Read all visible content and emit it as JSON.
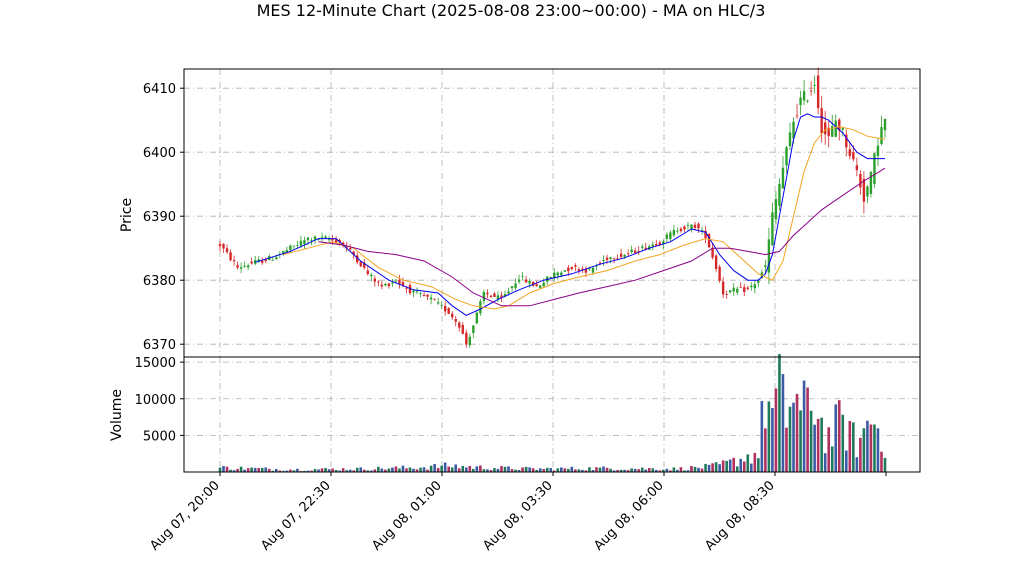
{
  "title": "MES 12-Minute Chart (2025-08-08 23:00~00:00) - MA on HLC/3",
  "colors": {
    "up": "#2ca02c",
    "down": "#d62728",
    "ma_short": "#0000ee",
    "ma_mid": "#f4a422",
    "ma_long": "#8b008b",
    "vol_a": "#1f7a5c",
    "vol_b": "#3b5ba5",
    "vol_c": "#b03060",
    "grid": "#b0b0b0"
  },
  "chart_data": [
    {
      "type": "candlestick",
      "ylabel": "Price",
      "ylim": [
        6368,
        6413
      ],
      "yticks": [
        6370,
        6380,
        6390,
        6400,
        6410
      ],
      "grid": true,
      "x_ticks": [
        "Aug 07, 20:00",
        "Aug 07, 22:30",
        "Aug 08, 01:00",
        "Aug 08, 03:30",
        "Aug 08, 06:00",
        "Aug 08, 08:30"
      ],
      "close_path": [
        [
          0,
          6385.5
        ],
        [
          5,
          6382.0
        ],
        [
          10,
          6382.8
        ],
        [
          15,
          6383.5
        ],
        [
          20,
          6385.0
        ],
        [
          25,
          6386.5
        ],
        [
          30,
          6386.5
        ],
        [
          34,
          6386.0
        ],
        [
          38,
          6384.0
        ],
        [
          42,
          6381.0
        ],
        [
          46,
          6379.0
        ],
        [
          50,
          6380.0
        ],
        [
          55,
          6378.0
        ],
        [
          60,
          6377.0
        ],
        [
          65,
          6375.0
        ],
        [
          68,
          6373.0
        ],
        [
          70,
          6370.0
        ],
        [
          72,
          6373.0
        ],
        [
          75,
          6378.0
        ],
        [
          80,
          6377.0
        ],
        [
          85,
          6380.5
        ],
        [
          90,
          6379.0
        ],
        [
          95,
          6381.0
        ],
        [
          100,
          6382.0
        ],
        [
          105,
          6381.5
        ],
        [
          110,
          6383.5
        ],
        [
          115,
          6384.0
        ],
        [
          120,
          6385.0
        ],
        [
          125,
          6386.0
        ],
        [
          130,
          6388.0
        ],
        [
          135,
          6388.5
        ],
        [
          138,
          6387.0
        ],
        [
          141,
          6382.0
        ],
        [
          143,
          6378.0
        ],
        [
          147,
          6378.5
        ],
        [
          150,
          6378.5
        ],
        [
          153,
          6380.0
        ],
        [
          155,
          6382.0
        ],
        [
          157,
          6390.0
        ],
        [
          159,
          6395.0
        ],
        [
          161,
          6400.0
        ],
        [
          163,
          6405.0
        ],
        [
          165,
          6408.0
        ],
        [
          167,
          6409.0
        ],
        [
          169,
          6411.0
        ],
        [
          171,
          6404.0
        ],
        [
          173,
          6402.0
        ],
        [
          175,
          6405.0
        ],
        [
          177,
          6403.0
        ],
        [
          179,
          6400.0
        ],
        [
          181,
          6397.0
        ],
        [
          183,
          6393.0
        ],
        [
          185,
          6396.0
        ],
        [
          187,
          6402.0
        ],
        [
          189,
          6405.0
        ]
      ],
      "series": [
        {
          "name": "MA short",
          "color_key": "ma_short",
          "points": [
            [
              10,
              6382.8
            ],
            [
              20,
              6384.5
            ],
            [
              28,
              6386.5
            ],
            [
              33,
              6386.5
            ],
            [
              40,
              6383.0
            ],
            [
              48,
              6380.0
            ],
            [
              55,
              6378.5
            ],
            [
              62,
              6378.0
            ],
            [
              66,
              6376.0
            ],
            [
              70,
              6374.5
            ],
            [
              74,
              6375.5
            ],
            [
              79,
              6377.0
            ],
            [
              85,
              6378.5
            ],
            [
              92,
              6380.0
            ],
            [
              100,
              6381.0
            ],
            [
              108,
              6382.5
            ],
            [
              115,
              6383.5
            ],
            [
              122,
              6385.0
            ],
            [
              128,
              6386.0
            ],
            [
              134,
              6388.0
            ],
            [
              138,
              6387.5
            ],
            [
              142,
              6384.0
            ],
            [
              146,
              6381.5
            ],
            [
              150,
              6380.0
            ],
            [
              153,
              6380.0
            ],
            [
              155,
              6381.0
            ],
            [
              157,
              6384.0
            ],
            [
              159,
              6390.0
            ],
            [
              161,
              6396.0
            ],
            [
              163,
              6402.0
            ],
            [
              165,
              6405.5
            ],
            [
              167,
              6406.0
            ],
            [
              169,
              6405.5
            ],
            [
              171,
              6405.5
            ],
            [
              173,
              6405.0
            ],
            [
              175,
              6404.0
            ],
            [
              177,
              6403.0
            ],
            [
              179,
              6401.5
            ],
            [
              181,
              6400.0
            ],
            [
              184,
              6399.0
            ],
            [
              189,
              6399.0
            ]
          ]
        },
        {
          "name": "MA mid",
          "color_key": "ma_mid",
          "points": [
            [
              18,
              6384.0
            ],
            [
              25,
              6385.0
            ],
            [
              32,
              6386.0
            ],
            [
              38,
              6385.0
            ],
            [
              45,
              6382.0
            ],
            [
              52,
              6380.0
            ],
            [
              60,
              6379.0
            ],
            [
              67,
              6377.0
            ],
            [
              72,
              6376.0
            ],
            [
              78,
              6375.5
            ],
            [
              82,
              6376.0
            ],
            [
              88,
              6378.0
            ],
            [
              95,
              6379.5
            ],
            [
              102,
              6380.5
            ],
            [
              110,
              6381.5
            ],
            [
              118,
              6383.0
            ],
            [
              125,
              6384.0
            ],
            [
              132,
              6385.5
            ],
            [
              138,
              6386.5
            ],
            [
              143,
              6386.0
            ],
            [
              148,
              6383.5
            ],
            [
              153,
              6381.0
            ],
            [
              157,
              6380.0
            ],
            [
              160,
              6383.0
            ],
            [
              163,
              6390.0
            ],
            [
              166,
              6397.0
            ],
            [
              169,
              6401.5
            ],
            [
              172,
              6403.5
            ],
            [
              176,
              6404.0
            ],
            [
              180,
              6403.5
            ],
            [
              184,
              6402.5
            ],
            [
              189,
              6402.0
            ]
          ]
        },
        {
          "name": "MA long",
          "color_key": "ma_long",
          "points": [
            [
              28,
              6386.0
            ],
            [
              35,
              6385.5
            ],
            [
              42,
              6384.5
            ],
            [
              50,
              6384.0
            ],
            [
              58,
              6383.0
            ],
            [
              66,
              6380.5
            ],
            [
              72,
              6378.0
            ],
            [
              80,
              6376.0
            ],
            [
              88,
              6376.0
            ],
            [
              95,
              6377.0
            ],
            [
              102,
              6378.0
            ],
            [
              110,
              6379.0
            ],
            [
              118,
              6380.0
            ],
            [
              126,
              6381.5
            ],
            [
              134,
              6383.0
            ],
            [
              140,
              6385.0
            ],
            [
              145,
              6385.0
            ],
            [
              150,
              6384.5
            ],
            [
              155,
              6384.0
            ],
            [
              159,
              6384.5
            ],
            [
              163,
              6387.0
            ],
            [
              167,
              6389.0
            ],
            [
              171,
              6391.0
            ],
            [
              175,
              6392.5
            ],
            [
              179,
              6394.0
            ],
            [
              183,
              6395.5
            ],
            [
              189,
              6397.5
            ]
          ]
        }
      ]
    },
    {
      "type": "bar",
      "ylabel": "Volume",
      "ylim": [
        0,
        15700
      ],
      "yticks": [
        5000,
        10000,
        15000
      ],
      "grid": true,
      "volume_profile": [
        [
          0,
          700
        ],
        [
          20,
          400
        ],
        [
          40,
          500
        ],
        [
          55,
          700
        ],
        [
          65,
          1000
        ],
        [
          75,
          700
        ],
        [
          90,
          500
        ],
        [
          110,
          600
        ],
        [
          130,
          500
        ],
        [
          140,
          900
        ],
        [
          145,
          1500
        ],
        [
          150,
          2500
        ],
        [
          153,
          3000
        ],
        [
          155,
          12000
        ],
        [
          157,
          9000
        ],
        [
          159,
          12500
        ],
        [
          161,
          9000
        ],
        [
          163,
          13000
        ],
        [
          165,
          9000
        ],
        [
          167,
          10000
        ],
        [
          169,
          12000
        ],
        [
          171,
          7500
        ],
        [
          173,
          5500
        ],
        [
          175,
          7000
        ],
        [
          177,
          8000
        ],
        [
          179,
          6000
        ],
        [
          181,
          4500
        ],
        [
          183,
          6000
        ],
        [
          185,
          9000
        ],
        [
          187,
          7000
        ],
        [
          189,
          5000
        ]
      ]
    }
  ]
}
